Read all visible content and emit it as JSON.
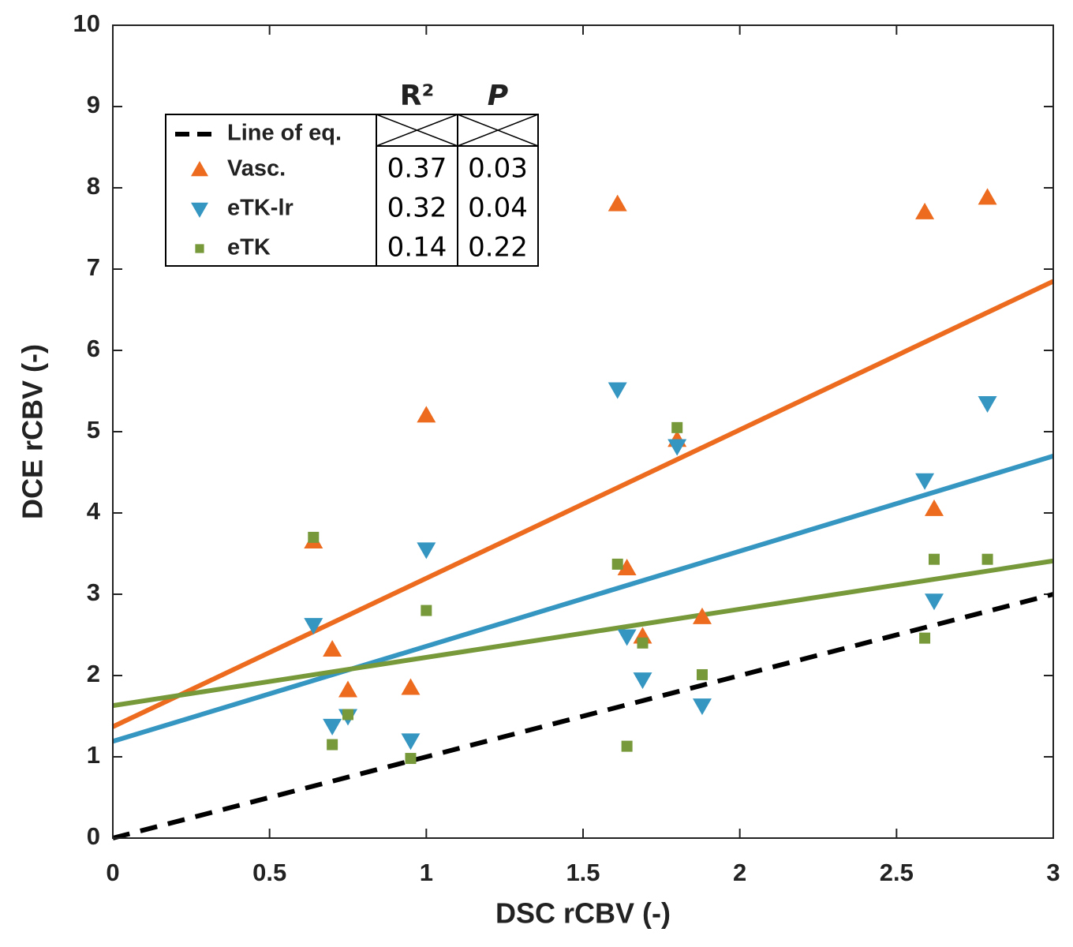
{
  "chart_data": {
    "type": "scatter",
    "xlabel": "DSC rCBV (-)",
    "ylabel": "DCE rCBV (-)",
    "xlim": [
      0,
      3
    ],
    "ylim": [
      0,
      10
    ],
    "xticks": [
      0,
      0.5,
      1,
      1.5,
      2,
      2.5,
      3
    ],
    "yticks": [
      0,
      1,
      2,
      3,
      4,
      5,
      6,
      7,
      8,
      9,
      10
    ],
    "legend_headers": [
      "R²",
      "P"
    ],
    "series": [
      {
        "name": "Line of eq.",
        "color": "#000000",
        "marker": "none",
        "linestyle": "dashed",
        "x": [
          0,
          3
        ],
        "values": [
          0,
          3
        ]
      },
      {
        "name": "Vasc.",
        "color": "#ec6b1e",
        "marker": "triangle-up",
        "r2": 0.37,
        "p": 0.03,
        "x": [
          0.64,
          0.7,
          0.75,
          0.95,
          1.0,
          1.61,
          1.64,
          1.69,
          1.8,
          1.88,
          2.59,
          2.62,
          2.79
        ],
        "values": [
          3.65,
          2.32,
          1.82,
          1.85,
          5.2,
          7.8,
          3.32,
          2.48,
          4.9,
          2.72,
          7.7,
          4.05,
          7.88
        ],
        "fit": {
          "x": [
            0,
            3
          ],
          "values": [
            1.37,
            6.85
          ]
        }
      },
      {
        "name": "eTK-lr",
        "color": "#3596c1",
        "marker": "triangle-down",
        "r2": 0.32,
        "p": 0.04,
        "x": [
          0.64,
          0.7,
          0.75,
          0.95,
          1.0,
          1.61,
          1.64,
          1.69,
          1.8,
          1.88,
          2.59,
          2.62,
          2.79
        ],
        "values": [
          2.62,
          1.38,
          1.5,
          1.2,
          3.55,
          5.52,
          2.48,
          1.95,
          4.82,
          1.63,
          4.4,
          2.92,
          5.35
        ],
        "fit": {
          "x": [
            0,
            3
          ],
          "values": [
            1.19,
            4.7
          ]
        }
      },
      {
        "name": "eTK",
        "color": "#77993a",
        "marker": "square",
        "r2": 0.14,
        "p": 0.22,
        "x": [
          0.64,
          0.7,
          0.75,
          0.95,
          1.0,
          1.61,
          1.64,
          1.69,
          1.8,
          1.88,
          2.59,
          2.62,
          2.79
        ],
        "values": [
          3.7,
          1.15,
          1.52,
          0.98,
          2.8,
          3.37,
          1.13,
          2.4,
          5.05,
          2.01,
          2.46,
          3.43,
          3.43
        ],
        "fit": {
          "x": [
            0,
            3
          ],
          "values": [
            1.63,
            3.41
          ]
        }
      }
    ]
  }
}
